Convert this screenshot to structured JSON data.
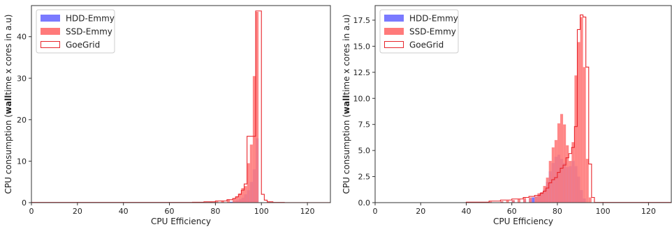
{
  "chart_data": [
    {
      "type": "histogram",
      "xlabel": "CPU Efficiency",
      "ylabel": "CPU consumption (walltime x cores in a.u)",
      "ylabel_parts": [
        "CPU consumption (",
        "wall",
        "time x cores in a.u)"
      ],
      "xlim": [
        0,
        130
      ],
      "ylim": [
        0,
        47.5
      ],
      "xticks": [
        0,
        20,
        40,
        60,
        80,
        100,
        120
      ],
      "yticks": [
        0,
        10,
        20,
        30,
        40
      ],
      "ytick_labels": [
        "0",
        "10",
        "20",
        "30",
        "40"
      ],
      "xtick_labels": [
        "0",
        "20",
        "40",
        "60",
        "80",
        "100",
        "120"
      ],
      "grid": false,
      "legend_position": "top-left",
      "bin_width": 1.25,
      "series": [
        {
          "name": "HDD-Emmy",
          "style": "filled",
          "color": "#7a7aff",
          "bars": [
            [
              86.25,
              0.2
            ],
            [
              87.5,
              0.3
            ],
            [
              88.75,
              0.5
            ],
            [
              90,
              0.8
            ],
            [
              91.25,
              1.2
            ],
            [
              92.5,
              2.0
            ],
            [
              93.75,
              3.0
            ],
            [
              95,
              5.0
            ],
            [
              96.25,
              8.0
            ],
            [
              97.5,
              15.5
            ]
          ]
        },
        {
          "name": "SSD-Emmy",
          "style": "filled",
          "color": "#ff7a7a",
          "bars": [
            [
              75,
              0.1
            ],
            [
              77.5,
              0.2
            ],
            [
              80,
              0.3
            ],
            [
              82.5,
              0.5
            ],
            [
              85,
              0.8
            ],
            [
              87.5,
              1.0
            ],
            [
              88.75,
              1.5
            ],
            [
              90,
              2.2
            ],
            [
              91.25,
              3.5
            ],
            [
              92.5,
              4.0
            ],
            [
              93.75,
              9.5
            ],
            [
              95,
              14.0
            ],
            [
              96.25,
              30.5
            ],
            [
              97.5,
              46.0
            ]
          ]
        },
        {
          "name": "GoeGrid",
          "style": "step",
          "color": "#e8252b",
          "steps": [
            [
              0,
              0.05
            ],
            [
              70,
              0.1
            ],
            [
              75,
              0.2
            ],
            [
              80,
              0.4
            ],
            [
              85,
              0.7
            ],
            [
              87.5,
              1.0
            ],
            [
              88.75,
              1.4
            ],
            [
              90,
              2.0
            ],
            [
              91.25,
              3.0
            ],
            [
              92.5,
              4.5
            ],
            [
              93.75,
              16.0
            ],
            [
              96.25,
              16.0
            ],
            [
              97.5,
              46.2
            ],
            [
              100,
              2.0
            ],
            [
              101.25,
              0.6
            ],
            [
              102.5,
              0.2
            ],
            [
              105,
              0.05
            ],
            [
              110,
              0.02
            ],
            [
              130,
              0.02
            ]
          ]
        }
      ]
    },
    {
      "type": "histogram",
      "xlabel": "CPU Efficiency",
      "ylabel": "CPU consumption (walltime x cores in a.u)",
      "ylabel_parts": [
        "CPU consumption (",
        "wall",
        "time x cores in a.u)"
      ],
      "xlim": [
        0,
        130
      ],
      "ylim": [
        0,
        18.9
      ],
      "xticks": [
        0,
        20,
        40,
        60,
        80,
        100,
        120
      ],
      "yticks": [
        0,
        2.5,
        5.0,
        7.5,
        10.0,
        12.5,
        15.0,
        17.5
      ],
      "ytick_labels": [
        "0.0",
        "2.5",
        "5.0",
        "7.5",
        "10.0",
        "12.5",
        "15.0",
        "17.5"
      ],
      "xtick_labels": [
        "0",
        "20",
        "40",
        "60",
        "80",
        "100",
        "120"
      ],
      "grid": false,
      "legend_position": "top-left",
      "bin_width": 1.25,
      "series": [
        {
          "name": "HDD-Emmy",
          "style": "filled",
          "color": "#7a7aff",
          "bars": [
            [
              55,
              0.1
            ],
            [
              60,
              0.2
            ],
            [
              65,
              0.3
            ],
            [
              67.5,
              0.4
            ],
            [
              68.75,
              0.5
            ],
            [
              70,
              0.6
            ],
            [
              71.25,
              0.8
            ],
            [
              72.5,
              1.0
            ],
            [
              73.75,
              1.3
            ],
            [
              75,
              2.0
            ],
            [
              76.25,
              3.0
            ],
            [
              77.5,
              3.8
            ],
            [
              78.75,
              4.4
            ],
            [
              80,
              4.6
            ],
            [
              81.25,
              4.2
            ],
            [
              82.5,
              3.8
            ],
            [
              83.75,
              3.4
            ],
            [
              85,
              3.5
            ],
            [
              86.25,
              4.0
            ],
            [
              87.5,
              3.5
            ],
            [
              88.75,
              2.5
            ],
            [
              90,
              1.2
            ],
            [
              91.25,
              0.4
            ]
          ]
        },
        {
          "name": "SSD-Emmy",
          "style": "filled",
          "color": "#ff7a7a",
          "bars": [
            [
              45,
              0.05
            ],
            [
              50,
              0.1
            ],
            [
              55,
              0.15
            ],
            [
              57.5,
              0.2
            ],
            [
              60,
              0.25
            ],
            [
              62.5,
              0.35
            ],
            [
              65,
              0.45
            ],
            [
              67.5,
              0.5
            ],
            [
              70,
              0.6
            ],
            [
              71.25,
              0.9
            ],
            [
              72.5,
              1.0
            ],
            [
              73.75,
              1.6
            ],
            [
              75,
              2.4
            ],
            [
              76.25,
              4.0
            ],
            [
              77.5,
              5.3
            ],
            [
              78.75,
              6.0
            ],
            [
              80,
              7.6
            ],
            [
              81.25,
              8.5
            ],
            [
              82.5,
              7.5
            ],
            [
              83.75,
              5.5
            ],
            [
              85,
              4.0
            ],
            [
              86.25,
              5.8
            ],
            [
              87.5,
              12.2
            ],
            [
              88.75,
              15.4
            ],
            [
              90,
              17.8
            ],
            [
              91.25,
              13.0
            ],
            [
              92.5,
              4.2
            ],
            [
              93.75,
              0.5
            ]
          ]
        },
        {
          "name": "GoeGrid",
          "style": "step",
          "color": "#e8252b",
          "steps": [
            [
              40,
              0.05
            ],
            [
              50,
              0.15
            ],
            [
              55,
              0.25
            ],
            [
              60,
              0.35
            ],
            [
              65,
              0.5
            ],
            [
              67.5,
              0.6
            ],
            [
              70,
              0.7
            ],
            [
              72.5,
              0.9
            ],
            [
              73.75,
              1.1
            ],
            [
              75,
              1.4
            ],
            [
              76.25,
              1.9
            ],
            [
              77.5,
              2.2
            ],
            [
              78.75,
              2.4
            ],
            [
              80,
              2.9
            ],
            [
              81.25,
              3.3
            ],
            [
              82.5,
              3.6
            ],
            [
              83.75,
              4.3
            ],
            [
              85,
              4.7
            ],
            [
              86.25,
              5.3
            ],
            [
              87.5,
              7.3
            ],
            [
              88.75,
              16.6
            ],
            [
              90,
              18.0
            ],
            [
              91.25,
              17.8
            ],
            [
              92.5,
              13.0
            ],
            [
              93.75,
              3.7
            ],
            [
              95,
              0.5
            ],
            [
              96.25,
              0.02
            ],
            [
              130,
              0.02
            ]
          ]
        }
      ]
    }
  ]
}
